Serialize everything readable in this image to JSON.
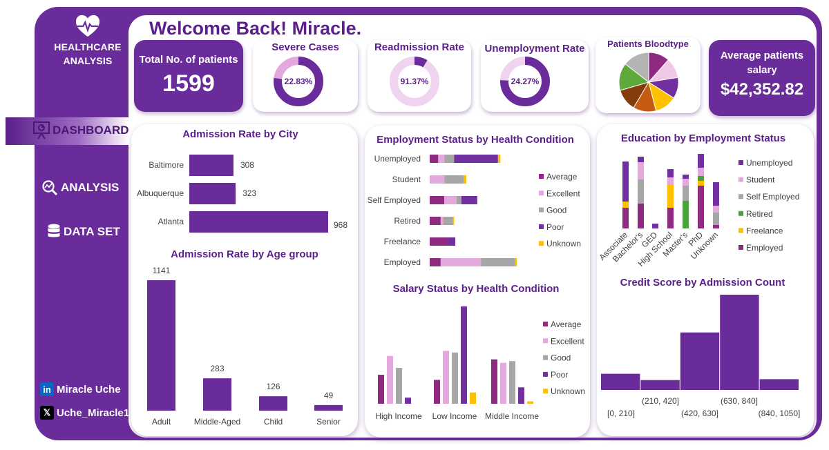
{
  "header": {
    "welcome": "Welcome Back! Miracle."
  },
  "sidebar": {
    "brand_line1": "HEALTHCARE",
    "brand_line2": "ANALYSIS",
    "brand_icon": "heart-pulse-icon",
    "items": [
      {
        "label": "DASHBOARD",
        "icon": "presentation-icon",
        "active": true
      },
      {
        "label": "ANALYSIS",
        "icon": "magnifier-chart-icon",
        "active": false
      },
      {
        "label": "DATA SET",
        "icon": "database-icon",
        "active": false
      }
    ],
    "social": [
      {
        "label": "Miracle Uche",
        "icon": "linkedin-icon"
      },
      {
        "label": "Uche_Miracle1",
        "icon": "x-icon"
      }
    ]
  },
  "kpis": {
    "total_patients": {
      "title": "Total No. of patients",
      "value": "1599"
    },
    "severe_cases": {
      "title": "Severe Cases",
      "value": "22.83%",
      "fraction": 0.7717
    },
    "readmission": {
      "title": "Readmission Rate",
      "value": "91.37%",
      "fraction": 0.0863
    },
    "unemployment": {
      "title": "Unemployment Rate",
      "value": "24.27%",
      "fraction": 0.7573
    },
    "bloodtype": {
      "title": "Patients Bloodtype"
    },
    "salary": {
      "title_line1": "Average patients",
      "title_line2": "salary",
      "value": "$42,352.82"
    }
  },
  "colors": {
    "primary": "#6a2c9a",
    "dark_purple": "#5a1f8a",
    "average": "#8e2a7f",
    "excellent": "#e4a9dc",
    "good": "#a6a6a6",
    "poor": "#7030a0",
    "unknown": "#ffc000",
    "light_pink": "#f0d4ef"
  },
  "chart_data": [
    {
      "type": "bar",
      "title": "Admission Rate by City",
      "orientation": "horizontal",
      "categories": [
        "Baltimore",
        "Albuquerque",
        "Atlanta"
      ],
      "values": [
        308,
        323,
        968
      ]
    },
    {
      "type": "bar",
      "title": "Admission Rate by Age group",
      "categories": [
        "Adult",
        "Middle-Aged",
        "Child",
        "Senior"
      ],
      "values": [
        1141,
        283,
        126,
        49
      ]
    },
    {
      "type": "bar",
      "title": "Employment Status by Health Condition",
      "orientation": "horizontal",
      "stacked": true,
      "categories": [
        "Unemployed",
        "Student",
        "Self Employed",
        "Retired",
        "Freelance",
        "Employed"
      ],
      "series": [
        {
          "name": "Average",
          "values": [
            35,
            0,
            60,
            45,
            75,
            45
          ]
        },
        {
          "name": "Excellent",
          "values": [
            25,
            60,
            50,
            10,
            0,
            165
          ]
        },
        {
          "name": "Good",
          "values": [
            40,
            80,
            20,
            40,
            0,
            140
          ]
        },
        {
          "name": "Poor",
          "values": [
            180,
            0,
            65,
            0,
            30,
            0
          ]
        },
        {
          "name": "Unknown",
          "values": [
            10,
            10,
            0,
            5,
            0,
            8
          ]
        }
      ]
    },
    {
      "type": "bar",
      "title": "Salary Status by Health Condition",
      "categories": [
        "High Income",
        "Low Income",
        "Middle Income"
      ],
      "series": [
        {
          "name": "Average",
          "values": [
            85,
            70,
            130
          ]
        },
        {
          "name": "Excellent",
          "values": [
            140,
            155,
            120
          ]
        },
        {
          "name": "Good",
          "values": [
            105,
            150,
            125
          ]
        },
        {
          "name": "Poor",
          "values": [
            18,
            285,
            48
          ]
        },
        {
          "name": "Unknown",
          "values": [
            0,
            33,
            7
          ]
        }
      ]
    },
    {
      "type": "bar",
      "title": "Education by Employment Status",
      "stacked": true,
      "categories": [
        "Associate",
        "Bachelor's",
        "GED",
        "High School",
        "Master's",
        "PhD",
        "Unknown"
      ],
      "series": [
        {
          "name": "Unemployed",
          "values": [
            58,
            8,
            7,
            12,
            6,
            20,
            34
          ]
        },
        {
          "name": "Student",
          "values": [
            0,
            25,
            0,
            10,
            10,
            12,
            10
          ]
        },
        {
          "name": "Self Employed",
          "values": [
            0,
            35,
            0,
            0,
            22,
            0,
            18
          ]
        },
        {
          "name": "Retired",
          "values": [
            0,
            0,
            0,
            0,
            40,
            7,
            0
          ]
        },
        {
          "name": "Freelance",
          "values": [
            9,
            0,
            0,
            34,
            0,
            7,
            0
          ]
        },
        {
          "name": "Employed",
          "values": [
            30,
            36,
            0,
            30,
            0,
            62,
            5
          ]
        }
      ]
    },
    {
      "type": "bar",
      "title": "Credit Score by Admission Count",
      "histogram": true,
      "categories": [
        "[0, 210]",
        "(210, 420]",
        "(420, 630]",
        "(630, 840]",
        "(840, 1050]"
      ],
      "values": [
        90,
        55,
        320,
        530,
        60
      ]
    },
    {
      "type": "pie",
      "title": "Patients Bloodtype",
      "values": [
        11.5,
        11,
        11.5,
        12,
        12.5,
        12,
        15,
        14.5
      ],
      "colors": [
        "#8e2a7f",
        "#f0c7e7",
        "#7030a0",
        "#ffc000",
        "#c55a11",
        "#843c0c",
        "#5fa83a",
        "#b4b4b4"
      ]
    }
  ]
}
